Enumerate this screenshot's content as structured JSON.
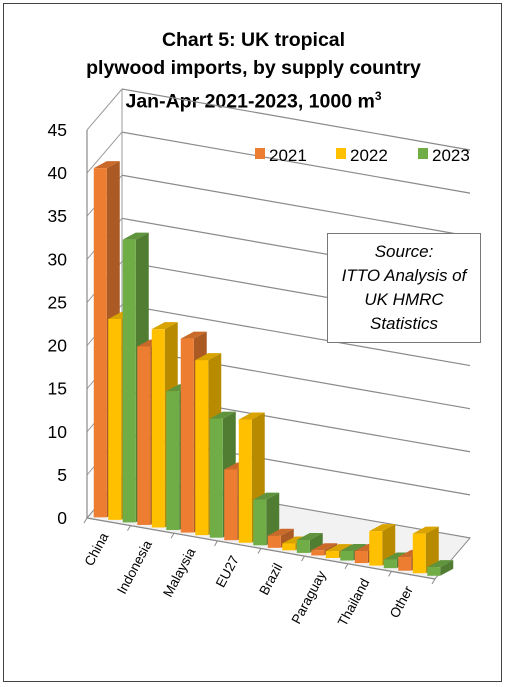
{
  "chart_data": {
    "type": "bar",
    "title_lines": [
      "Chart 5: UK tropical",
      "plywood imports, by supply country",
      "Jan-Apr 2021-2023, 1000 m",
      "3"
    ],
    "categories": [
      "China",
      "Indonesia",
      "Malaysia",
      "EU27",
      "Brazil",
      "Paraguay",
      "Thailand",
      "Other"
    ],
    "series": [
      {
        "name": "2021",
        "color": "#ED7D31",
        "values": [
          40.5,
          20.7,
          22.5,
          8.2,
          1.4,
          0.6,
          1.4,
          1.6
        ]
      },
      {
        "name": "2022",
        "color": "#FFC000",
        "values": [
          23.3,
          23.0,
          20.3,
          14.3,
          0.8,
          0.8,
          4.0,
          4.6
        ]
      },
      {
        "name": "2023",
        "color": "#70AD47",
        "values": [
          32.8,
          16.1,
          13.8,
          5.3,
          1.5,
          1.1,
          1.0,
          1.0
        ]
      }
    ],
    "y_ticks": [
      "0",
      "5",
      "10",
      "15",
      "20",
      "25",
      "30",
      "35",
      "40",
      "45"
    ],
    "ylim": [
      0,
      45
    ],
    "grid": true,
    "legend_position": "top-right",
    "source_note": [
      "Source:",
      "ITTO Analysis of",
      "UK HMRC",
      "Statistics"
    ]
  }
}
